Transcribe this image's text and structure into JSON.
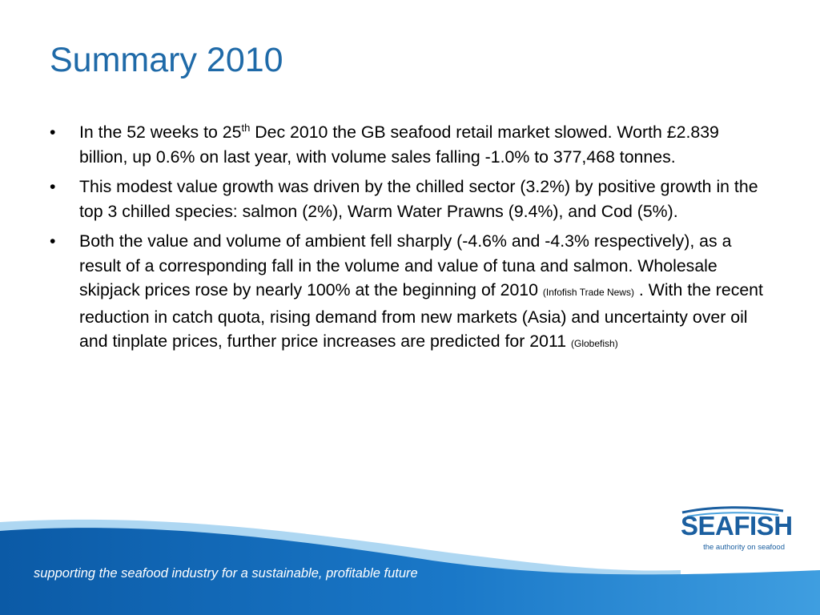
{
  "slide": {
    "title": "Summary 2010",
    "bullet_symbol": "•",
    "bullets": [
      {
        "part1": "In the 52 weeks to 25",
        "sup": "th",
        "part2": " Dec 2010 the GB seafood retail market slowed. Worth £2.839 billion, up 0.6% on last year, with volume sales falling -1.0% to 377,468 tonnes."
      },
      {
        "text": "This modest value growth was driven by the chilled sector (3.2%) by positive growth in the top 3 chilled species: salmon (2%), Warm Water Prawns (9.4%), and Cod (5%)."
      },
      {
        "part1": "Both the value and volume of ambient fell sharply (-4.6% and -4.3% respectively), as a result of a corresponding fall in the volume and value of tuna and salmon. Wholesale skipjack prices rose by nearly 100% at the beginning of 2010 ",
        "source1": "(Infofish Trade News)",
        "part2": " . With the recent reduction in catch quota, rising demand from new markets (Asia) and uncertainty over oil and tinplate prices, further price increases are predicted for 2011 ",
        "source2": "(Globefish)"
      }
    ]
  },
  "footer": {
    "tagline": "supporting the seafood industry for a sustainable, profitable future"
  },
  "logo": {
    "word": "SEAFISH",
    "tagline": "the authority on seafood"
  },
  "colors": {
    "title": "#1f6aa8",
    "wave_dark": "#0d5ea8",
    "wave_light": "#4aa3df",
    "logo": "#1b5fa0"
  }
}
